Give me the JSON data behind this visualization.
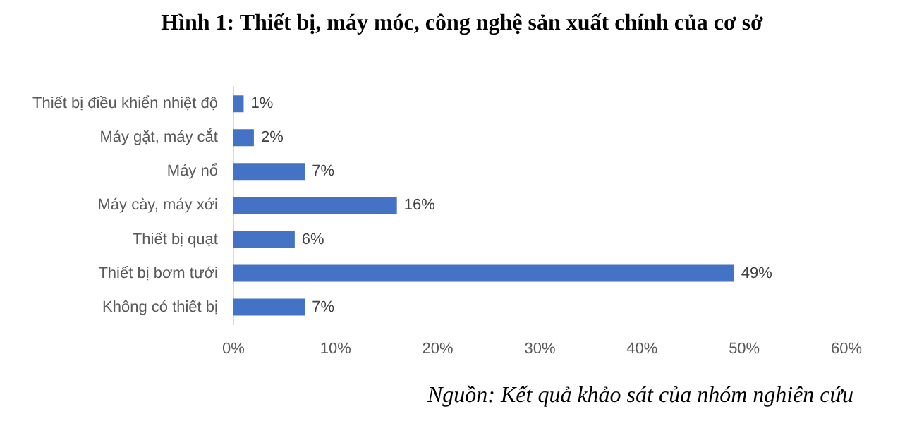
{
  "chart_data": {
    "type": "bar",
    "orientation": "horizontal",
    "title": "Hình 1: Thiết bị, máy móc, công nghệ sản xuất chính của cơ sở",
    "categories": [
      "Thiết bị điều khiển nhiệt độ",
      "Máy gặt, máy cắt",
      "Máy nổ",
      "Máy cày, máy xới",
      "Thiết bị quạt",
      "Thiết bị bơm tưới",
      "Không có thiết bị"
    ],
    "values": [
      1,
      2,
      7,
      16,
      6,
      49,
      7
    ],
    "value_labels": [
      "1%",
      "2%",
      "7%",
      "16%",
      "6%",
      "49%",
      "7%"
    ],
    "color": "#4472c4",
    "xlim": [
      0,
      60
    ],
    "xticks": [
      {
        "value": 0,
        "label": "0%"
      },
      {
        "value": 10,
        "label": "10%"
      },
      {
        "value": 20,
        "label": "20%"
      },
      {
        "value": 30,
        "label": "30%"
      },
      {
        "value": 40,
        "label": "40%"
      },
      {
        "value": 50,
        "label": "50%"
      },
      {
        "value": 60,
        "label": "60%"
      }
    ],
    "annotations": [
      "Nguồn: Kết quả khảo sát của nhóm nghiên cứu"
    ]
  }
}
